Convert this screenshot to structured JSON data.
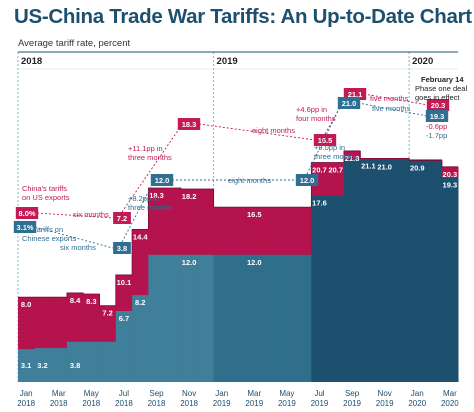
{
  "title": "US-China Trade War Tariffs: An Up-to-Date Chart",
  "subtitle": "Average tariff rate, percent",
  "colors": {
    "china_tariffs": "#b5134d",
    "us_tariffs": "#1d4f6e",
    "us_tariffs_mid": "#2f6f8c",
    "us_tariffs_light": "#3f7f9a",
    "annotation_red": "#c21a55",
    "annotation_blue": "#2e6f92",
    "year_divider": "#7eb6cc"
  },
  "year_labels": [
    "2018",
    "2019",
    "2020"
  ],
  "event_note": [
    "February 14",
    "Phase one deal",
    "goes in effect"
  ],
  "series_labels": {
    "china": [
      "China's tariffs",
      "on US exports"
    ],
    "us": [
      "US tariffs on",
      "Chinese exports"
    ]
  },
  "chart_data": {
    "type": "area",
    "x": [
      "Jan 2018",
      "Feb 2018",
      "Mar 2018",
      "Apr 2018",
      "May 2018",
      "Jun 2018",
      "Jul 2018",
      "Aug 2018",
      "Sep 2018",
      "Oct 2018",
      "Nov 2018",
      "Dec 2018",
      "Jan 2019",
      "Feb 2019",
      "Mar 2019",
      "Apr 2019",
      "May 2019",
      "Jun 2019",
      "Jul 2019",
      "Aug 2019",
      "Sep 2019",
      "Oct 2019",
      "Nov 2019",
      "Dec 2019",
      "Jan 2020",
      "Feb 2020",
      "Mar 2020"
    ],
    "x_tick_labels": [
      "Jan",
      "2018",
      "Mar",
      "2018",
      "May",
      "2018",
      "Jul",
      "2018",
      "Sep",
      "2018",
      "Nov",
      "2018",
      "Jan",
      "2019",
      "Mar",
      "2019",
      "May",
      "2019",
      "Jul",
      "2019",
      "Sep",
      "2019",
      "Nov",
      "2019",
      "Jan",
      "2020",
      "Mar",
      "2020"
    ],
    "series": [
      {
        "name": "China's tariffs on US exports",
        "values": [
          8.0,
          8.0,
          8.0,
          8.4,
          8.3,
          7.2,
          10.1,
          14.4,
          18.3,
          18.3,
          18.2,
          18.2,
          16.5,
          16.5,
          16.5,
          16.5,
          16.5,
          16.5,
          20.7,
          20.7,
          21.8,
          21.1,
          21.1,
          21.1,
          20.9,
          20.9,
          20.3
        ],
        "labels": [
          "8.0",
          "",
          "",
          "8.4",
          "8.3",
          "7.2",
          "10.1",
          "14.4",
          "18.3",
          "",
          "18.2",
          "",
          "",
          "",
          "16.5",
          "",
          "",
          "",
          "20.7",
          "20.7",
          "21.8",
          "21.1",
          "",
          "",
          "20.9",
          "",
          "20.3"
        ]
      },
      {
        "name": "US tariffs on Chinese exports",
        "values": [
          3.1,
          3.2,
          3.2,
          3.8,
          3.8,
          3.8,
          6.7,
          8.2,
          12.0,
          12.0,
          12.0,
          12.0,
          12.0,
          12.0,
          12.0,
          12.0,
          12.0,
          12.0,
          17.6,
          17.6,
          21.0,
          21.0,
          21.0,
          21.0,
          21.0,
          21.0,
          19.3
        ],
        "labels": [
          "3.1",
          "3.2",
          "",
          "3.8",
          "",
          "",
          "6.7",
          "8.2",
          "",
          "",
          "12.0",
          "",
          "",
          "",
          "12.0",
          "",
          "",
          "",
          "17.6",
          "",
          "",
          "",
          "21.0",
          "",
          "",
          "",
          "19.3"
        ]
      }
    ],
    "ylim": [
      0,
      26
    ],
    "xlabel": "",
    "ylabel": "",
    "grid": false,
    "dividers": [
      "2018",
      "2019",
      "2020"
    ],
    "step_annotations": {
      "china": [
        {
          "from": "8.0%",
          "to": "7.2",
          "text": [
            "six months"
          ]
        },
        {
          "from": "7.2",
          "to": "18.3",
          "text": [
            "+11.1pp in",
            "three months"
          ]
        },
        {
          "from": "18.3",
          "to": "16.5",
          "text": [
            "eight months"
          ]
        },
        {
          "from": "16.5",
          "to": "21.1",
          "text": [
            "+4.6pp in",
            "four months"
          ]
        },
        {
          "from": "21.1",
          "to": "20.3",
          "text": [
            "five months"
          ]
        }
      ],
      "us": [
        {
          "from": "3.1%",
          "to": "3.8",
          "text": [
            "six months"
          ]
        },
        {
          "from": "3.8",
          "to": "12.0",
          "text": [
            "+8.2pp in",
            "three months"
          ]
        },
        {
          "from": "12.0",
          "to": "12.0",
          "text": [
            "eight months"
          ]
        },
        {
          "from": "12.0",
          "to": "21.0",
          "text": [
            "+9.0pp in",
            "three months"
          ]
        },
        {
          "from": "21.0",
          "to": "19.3",
          "text": [
            "five months"
          ]
        }
      ],
      "change": {
        "china": "-0.6pp",
        "us": "-1.7pp"
      }
    }
  }
}
